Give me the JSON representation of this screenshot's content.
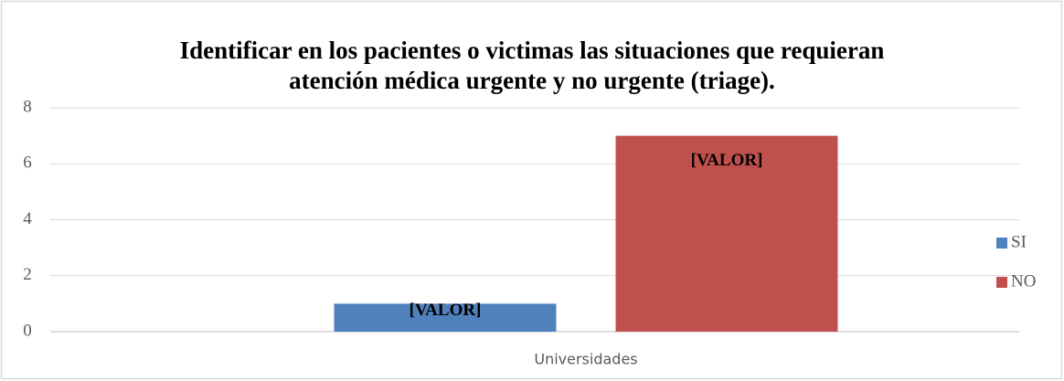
{
  "chart_data": {
    "type": "bar",
    "title": [
      "Identificar en los pacientes o victimas las situaciones que requieran",
      "atención médica urgente y no urgente (triage)."
    ],
    "categories": [
      "Universidades"
    ],
    "series": [
      {
        "name": "SI",
        "color": "#4f81bd",
        "values": [
          1
        ],
        "value_labels": [
          "[VALOR]"
        ]
      },
      {
        "name": "NO",
        "color": "#c0504d",
        "values": [
          7
        ],
        "value_labels": [
          "[VALOR]"
        ]
      }
    ],
    "ylim": [
      0,
      8
    ],
    "yticks": [
      0,
      2,
      4,
      6,
      8
    ],
    "grid": true,
    "legend": "right"
  }
}
